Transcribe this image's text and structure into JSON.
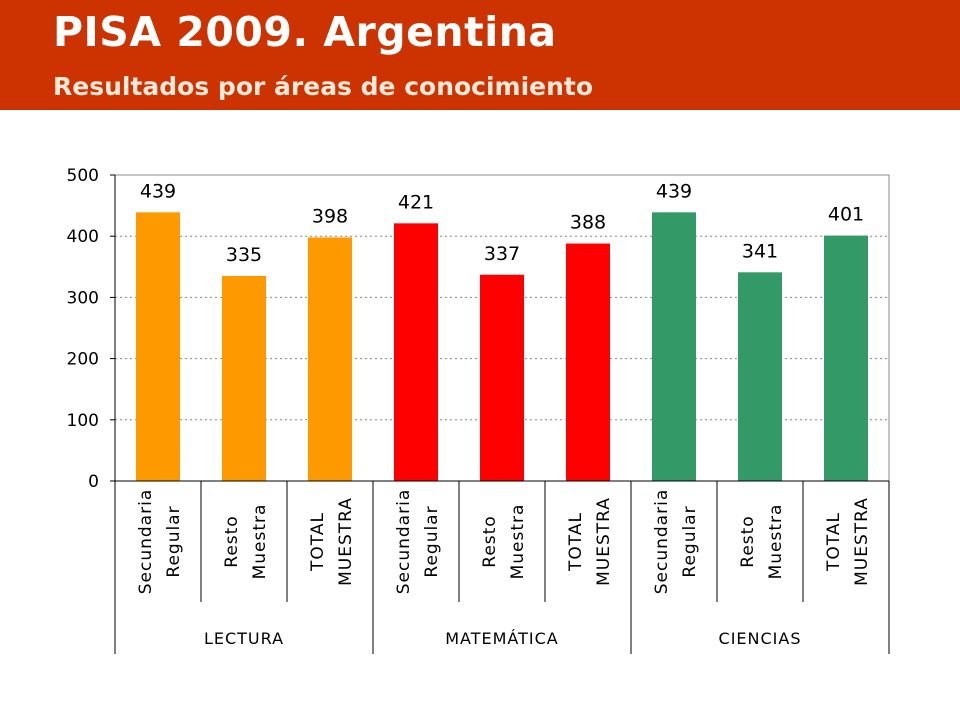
{
  "header": {
    "title": "PISA 2009. Argentina",
    "subtitle": "Resultados por áreas de conocimiento",
    "background": "#cc3300"
  },
  "chart_data": {
    "type": "bar",
    "ylim": [
      0,
      500
    ],
    "yticks": [
      "0",
      "100",
      "200",
      "300",
      "400",
      "500"
    ],
    "grid": true,
    "data_labels": true,
    "groups": [
      {
        "name": "LECTURA",
        "color": "#ff9900",
        "bars": [
          {
            "label_lines": [
              "Secundaria",
              "Regular"
            ],
            "value": 439
          },
          {
            "label_lines": [
              "Resto",
              "Muestra"
            ],
            "value": 335
          },
          {
            "label_lines": [
              "TOTAL",
              "MUESTRA"
            ],
            "value": 398
          }
        ]
      },
      {
        "name": "MATEMÁTICA",
        "color": "#ff0000",
        "bars": [
          {
            "label_lines": [
              "Secundaria",
              "Regular"
            ],
            "value": 421
          },
          {
            "label_lines": [
              "Resto",
              "Muestra"
            ],
            "value": 337
          },
          {
            "label_lines": [
              "TOTAL",
              "MUESTRA"
            ],
            "value": 388
          }
        ]
      },
      {
        "name": "CIENCIAS",
        "color": "#339966",
        "bars": [
          {
            "label_lines": [
              "Secundaria",
              "Regular"
            ],
            "value": 439
          },
          {
            "label_lines": [
              "Resto",
              "Muestra"
            ],
            "value": 341
          },
          {
            "label_lines": [
              "TOTAL",
              "MUESTRA"
            ],
            "value": 401
          }
        ]
      }
    ]
  }
}
